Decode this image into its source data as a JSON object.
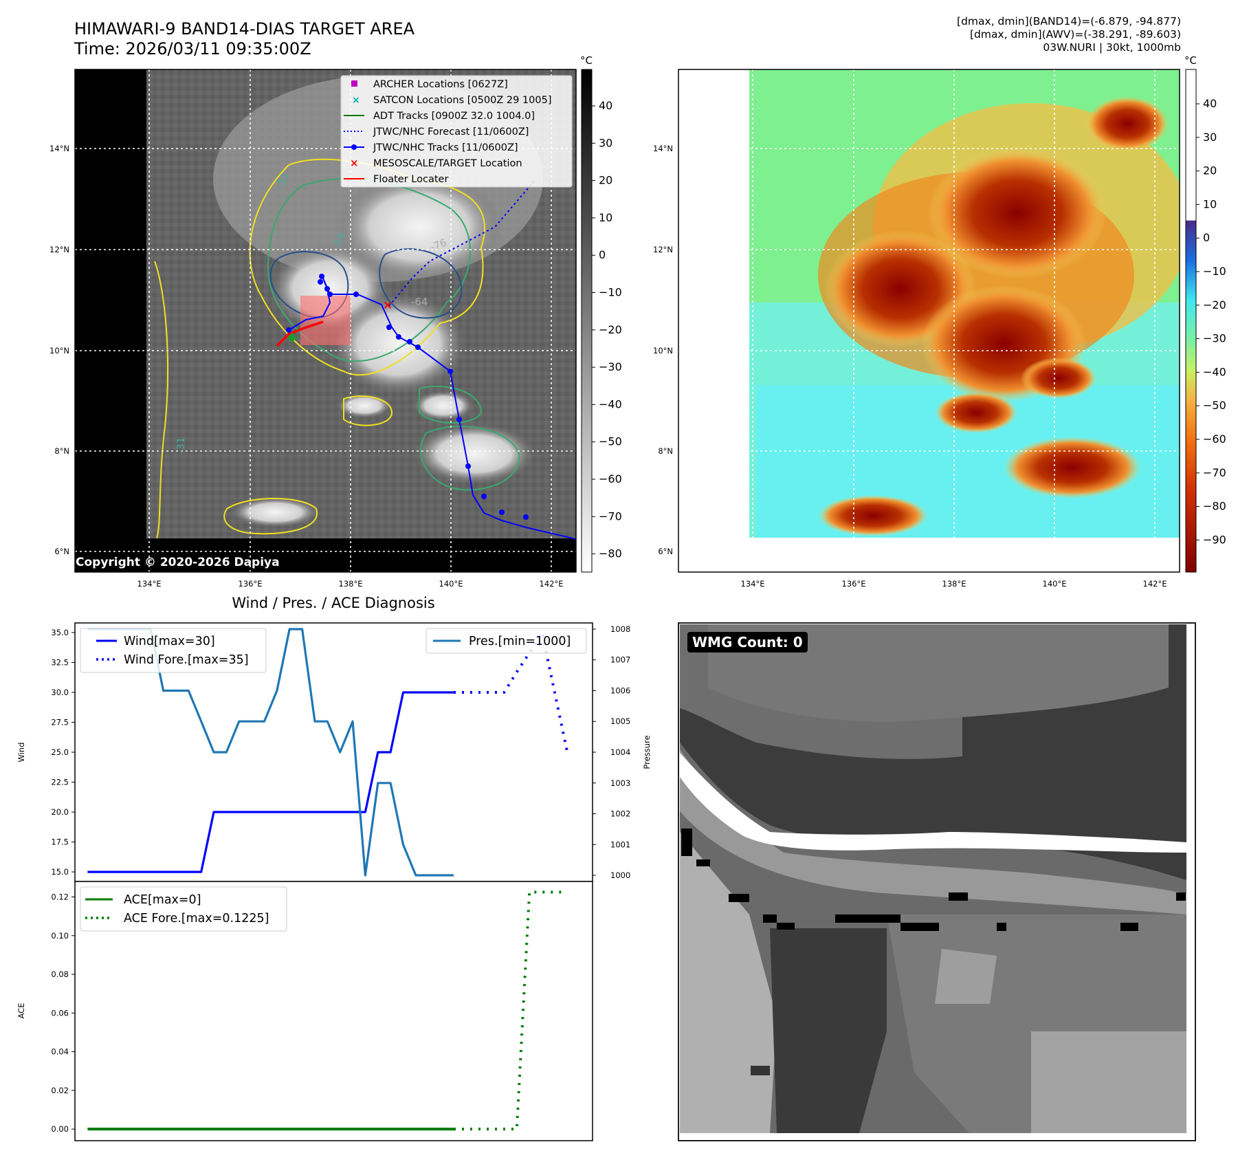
{
  "header": {
    "title_line1": "HIMAWARI-9 BAND14-DIAS TARGET AREA",
    "title_line2": "Time: 2026/03/11 09:35:00Z",
    "info_line1": "[dmax, dmin](BAND14)=(-6.879, -94.877)",
    "info_line2": "[dmax, dmin](AWV)=(-38.291, -89.603)",
    "info_line3": "03W.NURI | 30kt, 1000mb"
  },
  "copyright": "Copyright © 2020-2026 Dapiya",
  "map": {
    "lon_ticks": [
      "134°E",
      "136°E",
      "138°E",
      "140°E",
      "142°E"
    ],
    "lat_ticks": [
      "14°N",
      "12°N",
      "10°N",
      "8°N",
      "6°N"
    ],
    "legend": [
      {
        "label": "ARCHER Locations [0627Z]",
        "icon": "magenta-square",
        "color": "#c000c0"
      },
      {
        "label": "SATCON Locations [0500Z 29 1005]",
        "icon": "cyan-x",
        "color": "#00b0b0"
      },
      {
        "label": "ADT Tracks [0900Z 32.0 1004.0]",
        "icon": "green-line",
        "color": "#007a00"
      },
      {
        "label": "JTWC/NHC Forecast [11/0600Z]",
        "icon": "blue-dotted-line",
        "color": "#0000ff"
      },
      {
        "label": "JTWC/NHC Tracks [11/0600Z]",
        "icon": "blue-dot-line",
        "color": "#0000ff"
      },
      {
        "label": "MESOSCALE/TARGET Location",
        "icon": "red-x",
        "color": "#ff0000"
      },
      {
        "label": "Floater Locater",
        "icon": "red-line",
        "color": "#ff0000"
      }
    ],
    "contour_labels": [
      "-31",
      "-54",
      "-76",
      "-64",
      "-31"
    ],
    "gray_colorbar": {
      "unit": "°C",
      "ticks": [
        "40",
        "30",
        "20",
        "10",
        "0",
        "−10",
        "−20",
        "−30",
        "−40",
        "−50",
        "−60",
        "−70",
        "−80"
      ]
    },
    "color_colorbar": {
      "unit": "°C",
      "ticks": [
        "40",
        "30",
        "20",
        "10",
        "0",
        "−10",
        "−20",
        "−30",
        "−40",
        "−50",
        "−60",
        "−70",
        "−80",
        "−90"
      ]
    }
  },
  "diagnosis_title": "Wind / Pres. / ACE Diagnosis",
  "wmg_badge": "WMG Count: 0",
  "chart_data": [
    {
      "type": "line",
      "title": "Wind / Pres. / ACE Diagnosis",
      "ylabel": "Wind",
      "y2label": "Pressure",
      "ylim": [
        14.2,
        35.8
      ],
      "y2lim": [
        999.8,
        1008.2
      ],
      "y_ticks": [
        "35.0",
        "32.5",
        "30.0",
        "27.5",
        "25.0",
        "22.5",
        "20.0",
        "17.5",
        "15.0"
      ],
      "y2_ticks": [
        "1008",
        "1007",
        "1006",
        "1005",
        "1004",
        "1003",
        "1002",
        "1001",
        "1000"
      ],
      "legend_left": [
        "Wind[max=30]",
        "Wind Fore.[max=35]"
      ],
      "legend_right": [
        "Pres.[min=1000]"
      ],
      "series": [
        {
          "name": "Wind[max=30]",
          "axis": "y",
          "x": [
            0,
            1,
            2,
            3,
            4,
            5,
            6,
            7,
            8,
            9,
            10,
            11,
            12,
            13,
            14,
            15,
            16,
            17,
            18,
            19,
            20,
            21,
            22,
            23,
            24,
            25,
            26,
            27,
            28,
            29
          ],
          "values": [
            15,
            15,
            15,
            15,
            15,
            15,
            15,
            15,
            15,
            15,
            20,
            20,
            20,
            20,
            20,
            20,
            20,
            20,
            20,
            20,
            20,
            20,
            20,
            25,
            25,
            30,
            30,
            30,
            30,
            30
          ]
        },
        {
          "name": "Wind Fore.[max=35]",
          "axis": "y",
          "x": [
            29,
            30,
            31,
            32,
            33,
            34,
            35,
            36,
            37,
            38
          ],
          "values": [
            30,
            30,
            30,
            30,
            30,
            31.7,
            33.3,
            35,
            30,
            25
          ]
        },
        {
          "name": "Pres.[min=1000]",
          "axis": "y2",
          "x": [
            0,
            1,
            2,
            3,
            4,
            5,
            6,
            7,
            8,
            9,
            10,
            11,
            12,
            13,
            14,
            15,
            16,
            17,
            18,
            19,
            20,
            21,
            22,
            23,
            24,
            25,
            26,
            27,
            28,
            29
          ],
          "values": [
            1008,
            1008,
            1008,
            1008,
            1008,
            1008,
            1006,
            1006,
            1006,
            1005,
            1004,
            1004,
            1005,
            1005,
            1005,
            1006,
            1008,
            1008,
            1005,
            1005,
            1004,
            1005,
            1000,
            1003,
            1003,
            1001,
            1000,
            1000,
            1000,
            1000
          ]
        }
      ]
    },
    {
      "type": "line",
      "ylabel": "ACE",
      "ylim": [
        -0.006,
        0.128
      ],
      "y_ticks": [
        "0.12",
        "0.10",
        "0.08",
        "0.06",
        "0.04",
        "0.02",
        "0.00"
      ],
      "legend": [
        "ACE[max=0]",
        "ACE Fore.[max=0.1225]"
      ],
      "series": [
        {
          "name": "ACE[max=0]",
          "x": [
            0,
            29
          ],
          "values": [
            0,
            0
          ]
        },
        {
          "name": "ACE Fore.[max=0.1225]",
          "x": [
            29,
            33,
            34,
            35,
            37,
            38
          ],
          "values": [
            0,
            0,
            0,
            0.1225,
            0.1225,
            0.1225
          ]
        }
      ]
    }
  ]
}
